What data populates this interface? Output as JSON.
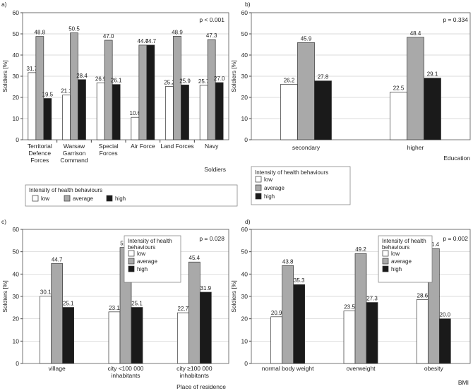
{
  "colors": {
    "low": "#ffffff",
    "average": "#a9a9a9",
    "high": "#1a1a1a"
  },
  "chart_data": [
    {
      "type": "bar",
      "panel_label": "a)",
      "p_value": "p < 0.001",
      "ylabel": "Soldiers [%]",
      "xlabel": "Soldiers",
      "ylim": [
        0,
        60
      ],
      "yticks": [
        0,
        10,
        20,
        30,
        40,
        50,
        60
      ],
      "grid": true,
      "categories": [
        "Territorial\nDefence\nForces",
        "Warsaw\nGarrison\nCommand",
        "Special\nForces",
        "Air Force",
        "Land Forces",
        "Navy"
      ],
      "series": [
        {
          "name": "low",
          "values": [
            31.7,
            21.1,
            26.9,
            10.6,
            25.2,
            25.7
          ]
        },
        {
          "name": "average",
          "values": [
            48.8,
            50.5,
            47.0,
            44.7,
            48.9,
            47.3
          ]
        },
        {
          "name": "high",
          "values": [
            19.5,
            28.4,
            26.1,
            44.7,
            25.9,
            27.0
          ]
        }
      ],
      "legend": {
        "title": "Intensity of health behaviours",
        "placement": "below",
        "layout": "horizontal"
      }
    },
    {
      "type": "bar",
      "panel_label": "b)",
      "p_value": "p = 0.334",
      "ylabel": "Soldiers [%]",
      "xlabel": "Education",
      "ylim": [
        0,
        60
      ],
      "yticks": [
        0,
        10,
        20,
        30,
        40,
        50,
        60
      ],
      "grid": true,
      "categories": [
        "secondary",
        "higher"
      ],
      "series": [
        {
          "name": "low",
          "values": [
            26.2,
            22.5
          ]
        },
        {
          "name": "average",
          "values": [
            45.9,
            48.4
          ]
        },
        {
          "name": "high",
          "values": [
            27.8,
            29.1
          ]
        }
      ],
      "legend": {
        "title": "Intensity of health behaviours",
        "placement": "below",
        "layout": "vertical"
      }
    },
    {
      "type": "bar",
      "panel_label": "c)",
      "p_value": "p = 0.028",
      "ylabel": "Soldiers [%]",
      "xlabel": "Place of residence",
      "ylim": [
        0,
        60
      ],
      "yticks": [
        0,
        10,
        20,
        30,
        40,
        50,
        60
      ],
      "grid": true,
      "categories": [
        "village",
        "city <100 000\ninhabitants",
        "city ≥100 000\ninhabitants"
      ],
      "series": [
        {
          "name": "low",
          "values": [
            30.1,
            23.1,
            22.7
          ]
        },
        {
          "name": "average",
          "values": [
            44.7,
            51.9,
            45.4
          ]
        },
        {
          "name": "high",
          "values": [
            25.1,
            25.1,
            31.9
          ]
        }
      ],
      "legend": {
        "title": "Intensity of health\nbehaviours",
        "placement": "top-center",
        "layout": "vertical"
      }
    },
    {
      "type": "bar",
      "panel_label": "d)",
      "p_value": "p = 0.002",
      "ylabel": "Soldiers [%]",
      "xlabel": "BMI",
      "ylim": [
        0,
        60
      ],
      "yticks": [
        0,
        10,
        20,
        30,
        40,
        50,
        60
      ],
      "grid": true,
      "categories": [
        "normal body weight",
        "overweight",
        "obesity"
      ],
      "series": [
        {
          "name": "low",
          "values": [
            20.9,
            23.5,
            28.6
          ]
        },
        {
          "name": "average",
          "values": [
            43.8,
            49.2,
            51.4
          ]
        },
        {
          "name": "high",
          "values": [
            35.3,
            27.3,
            20.0
          ]
        }
      ],
      "legend": {
        "title": "Intensity of health\nbehaviours",
        "placement": "top-right",
        "layout": "vertical"
      }
    }
  ]
}
